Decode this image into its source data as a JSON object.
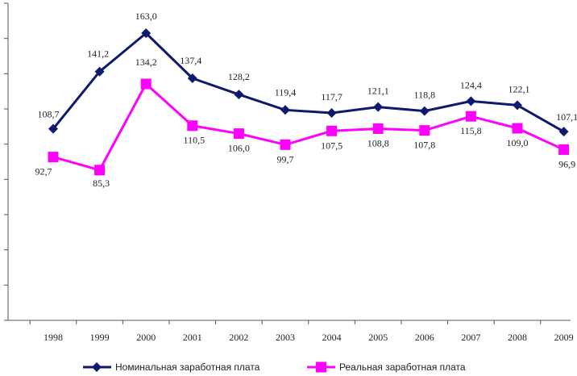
{
  "chart_data": {
    "type": "line",
    "title": "",
    "xlabel": "",
    "ylabel": "",
    "ylim": [
      0,
      180
    ],
    "grid": false,
    "legend_position": "bottom",
    "x": [
      "1998",
      "1999",
      "2000",
      "2001",
      "2002",
      "2003",
      "2004",
      "2005",
      "2006",
      "2007",
      "2008",
      "2009"
    ],
    "series": [
      {
        "name": "Номинальная  заработная плата",
        "color": "#0d1a6e",
        "marker": "diamond",
        "values": [
          108.7,
          141.2,
          163.0,
          137.4,
          128.2,
          119.4,
          117.7,
          121.1,
          118.8,
          124.4,
          122.1,
          107.1
        ],
        "labels": [
          "108,7",
          "141,2",
          "163,0",
          "137,4",
          "128,2",
          "119,4",
          "117,7",
          "121,1",
          "118,8",
          "124,4",
          "122,1",
          "107,1"
        ]
      },
      {
        "name": "Реальная  заработная плата",
        "color": "#ff00ff",
        "marker": "square",
        "values": [
          92.7,
          85.3,
          134.2,
          110.5,
          106.0,
          99.7,
          107.5,
          108.8,
          107.8,
          115.8,
          109.0,
          96.9
        ],
        "labels": [
          "92,7",
          "85,3",
          "134,2",
          "110,5",
          "106,0",
          "99,7",
          "107,5",
          "108,8",
          "107,8",
          "115,8",
          "109,0",
          "96,9"
        ]
      }
    ]
  }
}
